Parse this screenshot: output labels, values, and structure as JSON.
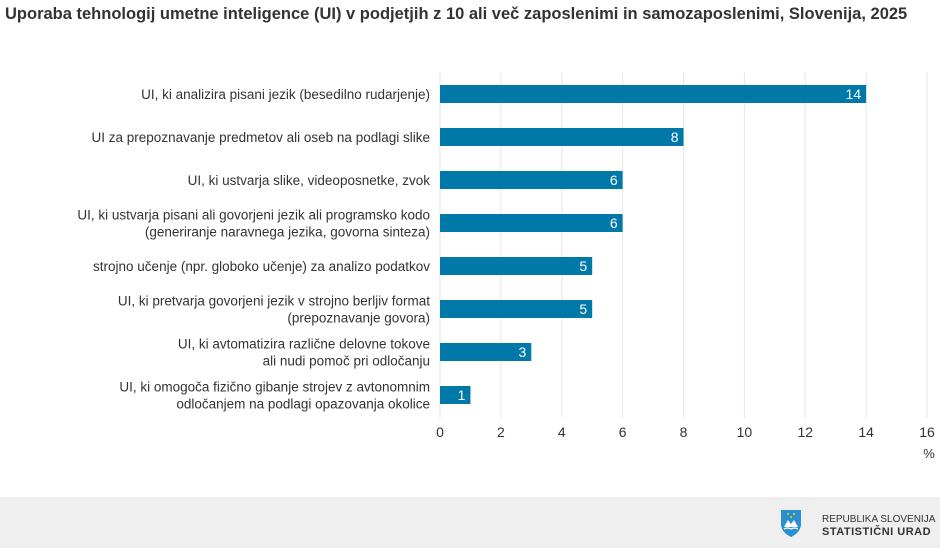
{
  "chart_data": {
    "type": "bar",
    "orientation": "horizontal",
    "title": "Uporaba tehnologij umetne inteligence (UI) v podjetjih z 10 ali več zaposlenimi in samozaposlenimi, Slovenija, 2025",
    "categories": [
      [
        "UI, ki analizira pisani jezik (besedilno rudarjenje)"
      ],
      [
        "UI za prepoznavanje predmetov ali oseb na podlagi slike"
      ],
      [
        "UI, ki ustvarja slike, videoposnetke, zvok"
      ],
      [
        "UI, ki ustvarja pisani ali govorjeni jezik ali programsko kodo",
        "(generiranje naravnega jezika, govorna sinteza)"
      ],
      [
        "strojno učenje (npr. globoko učenje) za analizo podatkov"
      ],
      [
        "UI, ki pretvarja govorjeni jezik v strojno berljiv format",
        "(prepoznavanje govora)"
      ],
      [
        "UI, ki avtomatizira različne delovne tokove",
        "ali nudi pomoč pri odločanju"
      ],
      [
        "UI, ki omogoča fizično gibanje strojev z avtonomnim",
        "odločanjem na podlagi opazovanja okolice"
      ]
    ],
    "values": [
      14,
      8,
      6,
      6,
      5,
      5,
      3,
      1
    ],
    "xlabel": "%",
    "xlim": [
      0,
      16
    ],
    "xticks": [
      "0",
      "2",
      "4",
      "6",
      "8",
      "10",
      "12",
      "14",
      "16"
    ],
    "grid": true,
    "bar_color": "#0079a8"
  },
  "footer": {
    "line1": "REPUBLIKA SLOVENIJA",
    "line2": "STATISTIČNI URAD"
  }
}
